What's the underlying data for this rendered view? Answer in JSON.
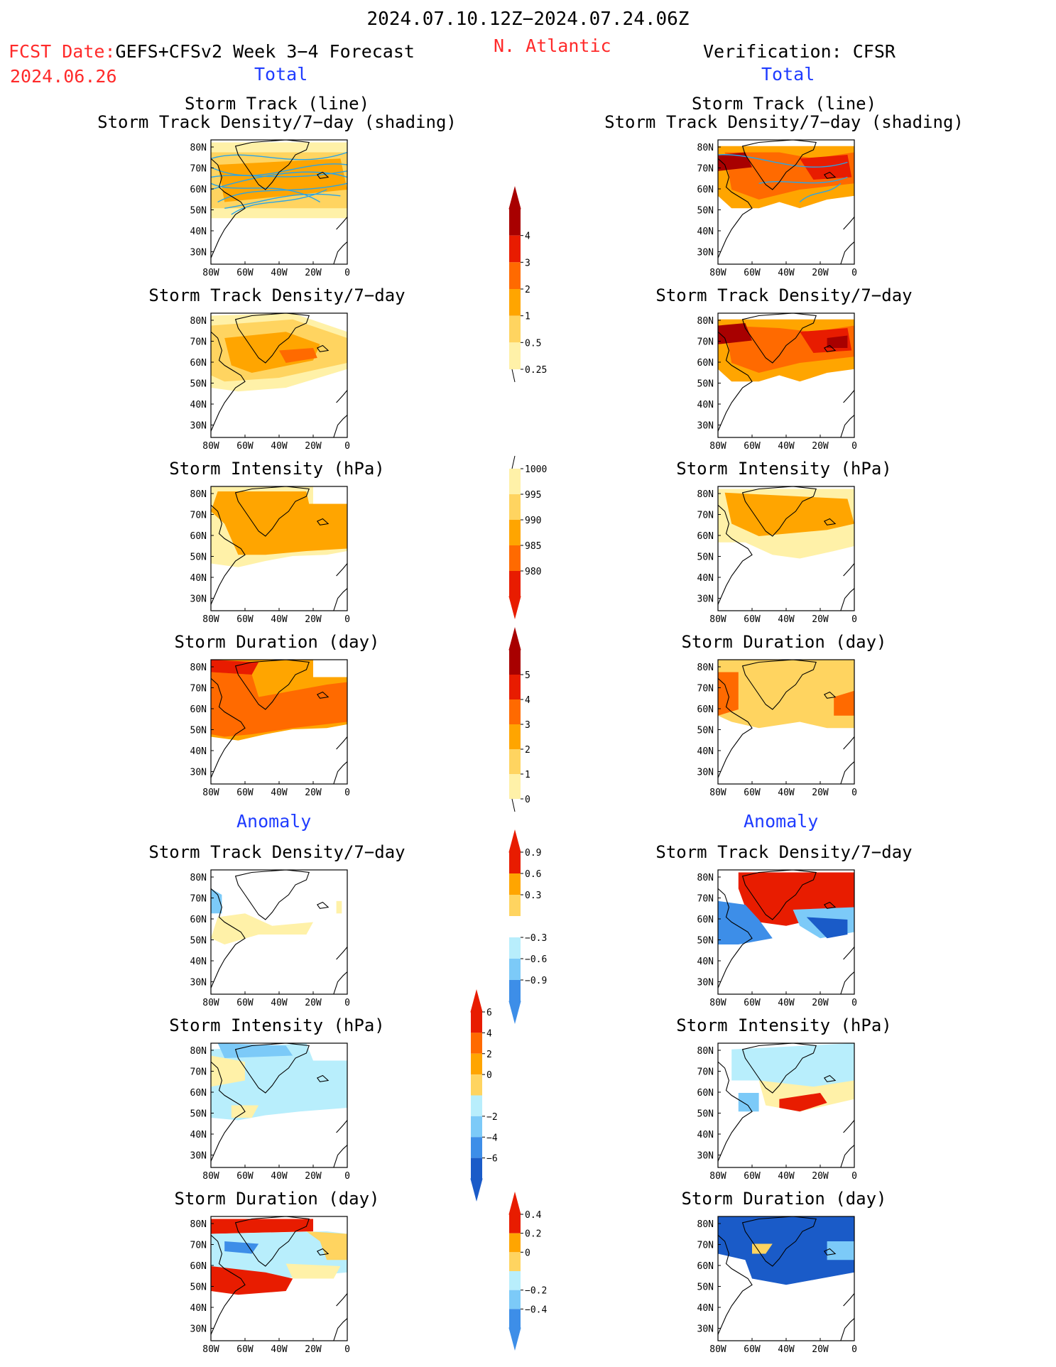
{
  "header": {
    "period": "2024.07.10.12Z−2024.07.24.06Z",
    "fcst_prefix": "FCST Date:",
    "fcst_model": "GEFS+CFSv2 Week 3−4 Forecast",
    "fcst_date": "2024.06.26",
    "region": "N. Atlantic",
    "verification": "Verification: CFSR"
  },
  "section_labels": {
    "total": "Total",
    "anomaly": "Anomaly"
  },
  "titles": {
    "storm_track_line": "Storm Track (line)",
    "storm_track_density_shading": "Storm Track Density/7−day (shading)",
    "storm_track_density": "Storm Track Density/7−day",
    "storm_intensity": "Storm Intensity (hPa)",
    "storm_duration": "Storm Duration (day)"
  },
  "map_axes": {
    "lat_ticks": [
      "80N",
      "70N",
      "60N",
      "50N",
      "40N",
      "30N"
    ],
    "lon_ticks": [
      "80W",
      "60W",
      "40W",
      "20W",
      "0"
    ]
  },
  "colorbars": {
    "track_density_total": [
      "4",
      "3",
      "2",
      "1",
      "0.5",
      "0.25"
    ],
    "intensity_total": [
      "1000",
      "995",
      "990",
      "985",
      "980"
    ],
    "duration_total": [
      "5",
      "4",
      "3",
      "2",
      "1",
      "0"
    ],
    "track_density_anomaly": [
      "0.9",
      "0.6",
      "0.3",
      "−0.3",
      "−0.6",
      "−0.9"
    ],
    "intensity_anomaly": [
      "6",
      "4",
      "2",
      "0",
      "−2",
      "−4",
      "−6"
    ],
    "duration_anomaly": [
      "0.4",
      "0.2",
      "0",
      "−0.2",
      "−0.4"
    ]
  },
  "colors": {
    "title_red": "#ff2a2a",
    "label_blue": "#1f3cff",
    "dens1": "#fff1a8",
    "dens2": "#ffd460",
    "dens3": "#ffa500",
    "dens4": "#ff6a00",
    "dens5": "#e81c00",
    "dens6": "#a80000",
    "neg1": "#b8eefc",
    "neg2": "#7ccaf8",
    "neg3": "#3d8ee8",
    "neg4": "#1a5bc8",
    "track_line": "#2aa4e6"
  }
}
